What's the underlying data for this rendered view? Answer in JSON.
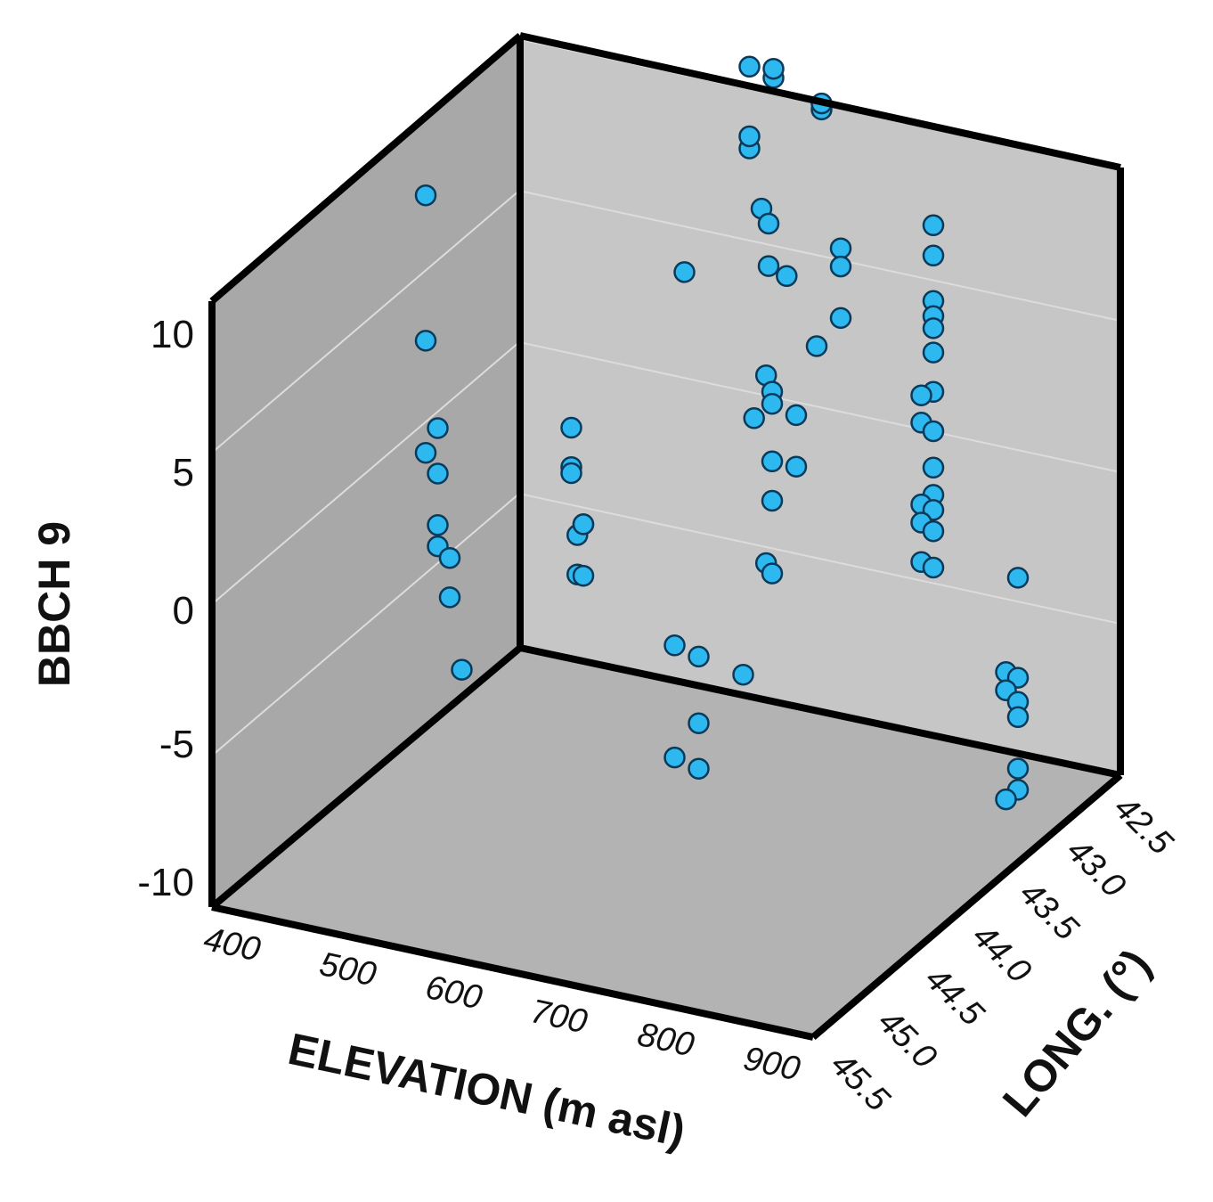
{
  "chart_data": {
    "type": "scatter",
    "dimensions": "3d",
    "title": "",
    "xlabel": "ELEVATION (m asl)",
    "ylabel": "LONG. (°)",
    "zlabel": "BBCH 9",
    "x_ticks": [
      "400",
      "500",
      "600",
      "700",
      "800",
      "900"
    ],
    "y_ticks": [
      "42.5",
      "43.0",
      "43.5",
      "44.0",
      "44.5",
      "45.0",
      "45.5"
    ],
    "z_ticks": [
      "10",
      "5",
      "0",
      "-5",
      "-10"
    ],
    "xlim": [
      400,
      900
    ],
    "ylim": [
      42.5,
      45.5
    ],
    "zlim": [
      -10,
      10
    ],
    "grid": true,
    "marker_color": "#2db8f0",
    "marker_edge_color": "#0a3a5a",
    "wall_colors": {
      "back": "#c5c5c5",
      "left": "#a8a8a8",
      "floor": "#b4b4b4"
    },
    "points": [
      {
        "x": 450,
        "y": 44.0,
        "z": 9.6
      },
      {
        "x": 450,
        "y": 44.0,
        "z": 4.8
      },
      {
        "x": 460,
        "y": 44.0,
        "z": 2.0
      },
      {
        "x": 450,
        "y": 44.0,
        "z": 1.1
      },
      {
        "x": 460,
        "y": 44.0,
        "z": 0.5
      },
      {
        "x": 460,
        "y": 44.0,
        "z": -1.2
      },
      {
        "x": 460,
        "y": 44.0,
        "z": -1.9
      },
      {
        "x": 470,
        "y": 44.0,
        "z": -2.2
      },
      {
        "x": 470,
        "y": 44.0,
        "z": -3.5
      },
      {
        "x": 480,
        "y": 44.0,
        "z": -5.8
      },
      {
        "x": 520,
        "y": 43.4,
        "z": 0.8
      },
      {
        "x": 520,
        "y": 43.4,
        "z": -0.5
      },
      {
        "x": 520,
        "y": 43.4,
        "z": -0.7
      },
      {
        "x": 525,
        "y": 43.4,
        "z": -2.7
      },
      {
        "x": 525,
        "y": 43.4,
        "z": -4.0
      },
      {
        "x": 530,
        "y": 43.4,
        "z": -4.0
      },
      {
        "x": 530,
        "y": 43.4,
        "z": -2.3
      },
      {
        "x": 530,
        "y": 43.4,
        "z": -2.3
      },
      {
        "x": 580,
        "y": 43.0,
        "z": 5.3
      },
      {
        "x": 600,
        "y": 42.6,
        "z": 11.1
      },
      {
        "x": 620,
        "y": 42.6,
        "z": 10.9
      },
      {
        "x": 620,
        "y": 42.6,
        "z": 11.2
      },
      {
        "x": 660,
        "y": 42.6,
        "z": 10.2
      },
      {
        "x": 660,
        "y": 42.6,
        "z": 10.4
      },
      {
        "x": 600,
        "y": 42.6,
        "z": 8.4
      },
      {
        "x": 600,
        "y": 42.6,
        "z": 8.8
      },
      {
        "x": 610,
        "y": 42.6,
        "z": 6.5
      },
      {
        "x": 650,
        "y": 43.0,
        "z": 7.5
      },
      {
        "x": 650,
        "y": 43.0,
        "z": 6.1
      },
      {
        "x": 665,
        "y": 43.0,
        "z": 5.9
      },
      {
        "x": 710,
        "y": 43.0,
        "z": 7.2
      },
      {
        "x": 710,
        "y": 43.0,
        "z": 6.6
      },
      {
        "x": 710,
        "y": 43.0,
        "z": 4.9
      },
      {
        "x": 690,
        "y": 43.0,
        "z": 3.8
      },
      {
        "x": 665,
        "y": 43.2,
        "z": 3.2
      },
      {
        "x": 670,
        "y": 43.2,
        "z": 2.7
      },
      {
        "x": 670,
        "y": 43.2,
        "z": 2.3
      },
      {
        "x": 690,
        "y": 43.2,
        "z": 2.1
      },
      {
        "x": 655,
        "y": 43.2,
        "z": 1.7
      },
      {
        "x": 670,
        "y": 43.2,
        "z": 0.4
      },
      {
        "x": 690,
        "y": 43.2,
        "z": 0.4
      },
      {
        "x": 670,
        "y": 43.2,
        "z": -0.9
      },
      {
        "x": 665,
        "y": 43.2,
        "z": -3.0
      },
      {
        "x": 670,
        "y": 43.2,
        "z": -3.3
      },
      {
        "x": 640,
        "y": 43.8,
        "z": -4.2
      },
      {
        "x": 660,
        "y": 43.8,
        "z": -4.4
      },
      {
        "x": 680,
        "y": 43.6,
        "z": -5.4
      },
      {
        "x": 660,
        "y": 43.8,
        "z": -6.6
      },
      {
        "x": 640,
        "y": 43.8,
        "z": -7.9
      },
      {
        "x": 660,
        "y": 43.8,
        "z": -8.1
      },
      {
        "x": 770,
        "y": 42.8,
        "z": 7.9
      },
      {
        "x": 770,
        "y": 42.8,
        "z": 6.9
      },
      {
        "x": 770,
        "y": 42.8,
        "z": 5.4
      },
      {
        "x": 770,
        "y": 42.8,
        "z": 4.9
      },
      {
        "x": 770,
        "y": 42.8,
        "z": 4.5
      },
      {
        "x": 770,
        "y": 42.8,
        "z": 3.7
      },
      {
        "x": 770,
        "y": 42.8,
        "z": 2.4
      },
      {
        "x": 760,
        "y": 42.8,
        "z": 2.2
      },
      {
        "x": 760,
        "y": 42.8,
        "z": 1.3
      },
      {
        "x": 770,
        "y": 42.8,
        "z": 1.1
      },
      {
        "x": 770,
        "y": 42.8,
        "z": -0.1
      },
      {
        "x": 770,
        "y": 42.8,
        "z": -1.0
      },
      {
        "x": 760,
        "y": 42.8,
        "z": -1.4
      },
      {
        "x": 770,
        "y": 42.8,
        "z": -1.5
      },
      {
        "x": 760,
        "y": 42.8,
        "z": -2.0
      },
      {
        "x": 770,
        "y": 42.8,
        "z": -2.2
      },
      {
        "x": 760,
        "y": 42.8,
        "z": -3.3
      },
      {
        "x": 770,
        "y": 42.8,
        "z": -3.4
      },
      {
        "x": 900,
        "y": 43.5,
        "z": -0.6
      },
      {
        "x": 890,
        "y": 43.5,
        "z": -3.8
      },
      {
        "x": 900,
        "y": 43.5,
        "z": -3.9
      },
      {
        "x": 890,
        "y": 43.5,
        "z": -4.4
      },
      {
        "x": 900,
        "y": 43.5,
        "z": -4.7
      },
      {
        "x": 900,
        "y": 43.5,
        "z": -5.2
      },
      {
        "x": 900,
        "y": 43.5,
        "z": -6.9
      },
      {
        "x": 900,
        "y": 43.5,
        "z": -7.6
      },
      {
        "x": 890,
        "y": 43.5,
        "z": -8.0
      }
    ]
  }
}
